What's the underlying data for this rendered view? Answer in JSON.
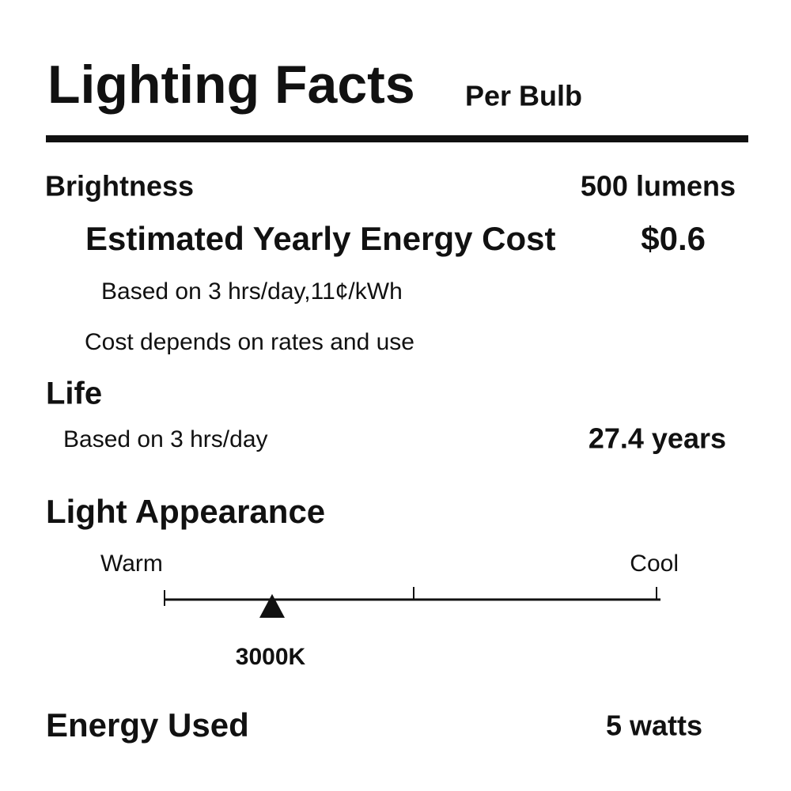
{
  "header": {
    "title": "Lighting Facts",
    "subtitle": "Per Bulb"
  },
  "brightness": {
    "label": "Brightness",
    "value": "500 lumens"
  },
  "energy_cost": {
    "label": "Estimated Yearly Energy Cost",
    "value": "$0.6",
    "basis": "Based on 3 hrs/day,11¢/kWh",
    "note": "Cost depends on rates and use"
  },
  "life": {
    "label": "Life",
    "basis": "Based on 3 hrs/day",
    "value": "27.4 years"
  },
  "light_appearance": {
    "label": "Light Appearance",
    "left_label": "Warm",
    "right_label": "Cool",
    "marker_label": "3000K"
  },
  "energy_used": {
    "label": "Energy Used",
    "value": "5 watts"
  }
}
